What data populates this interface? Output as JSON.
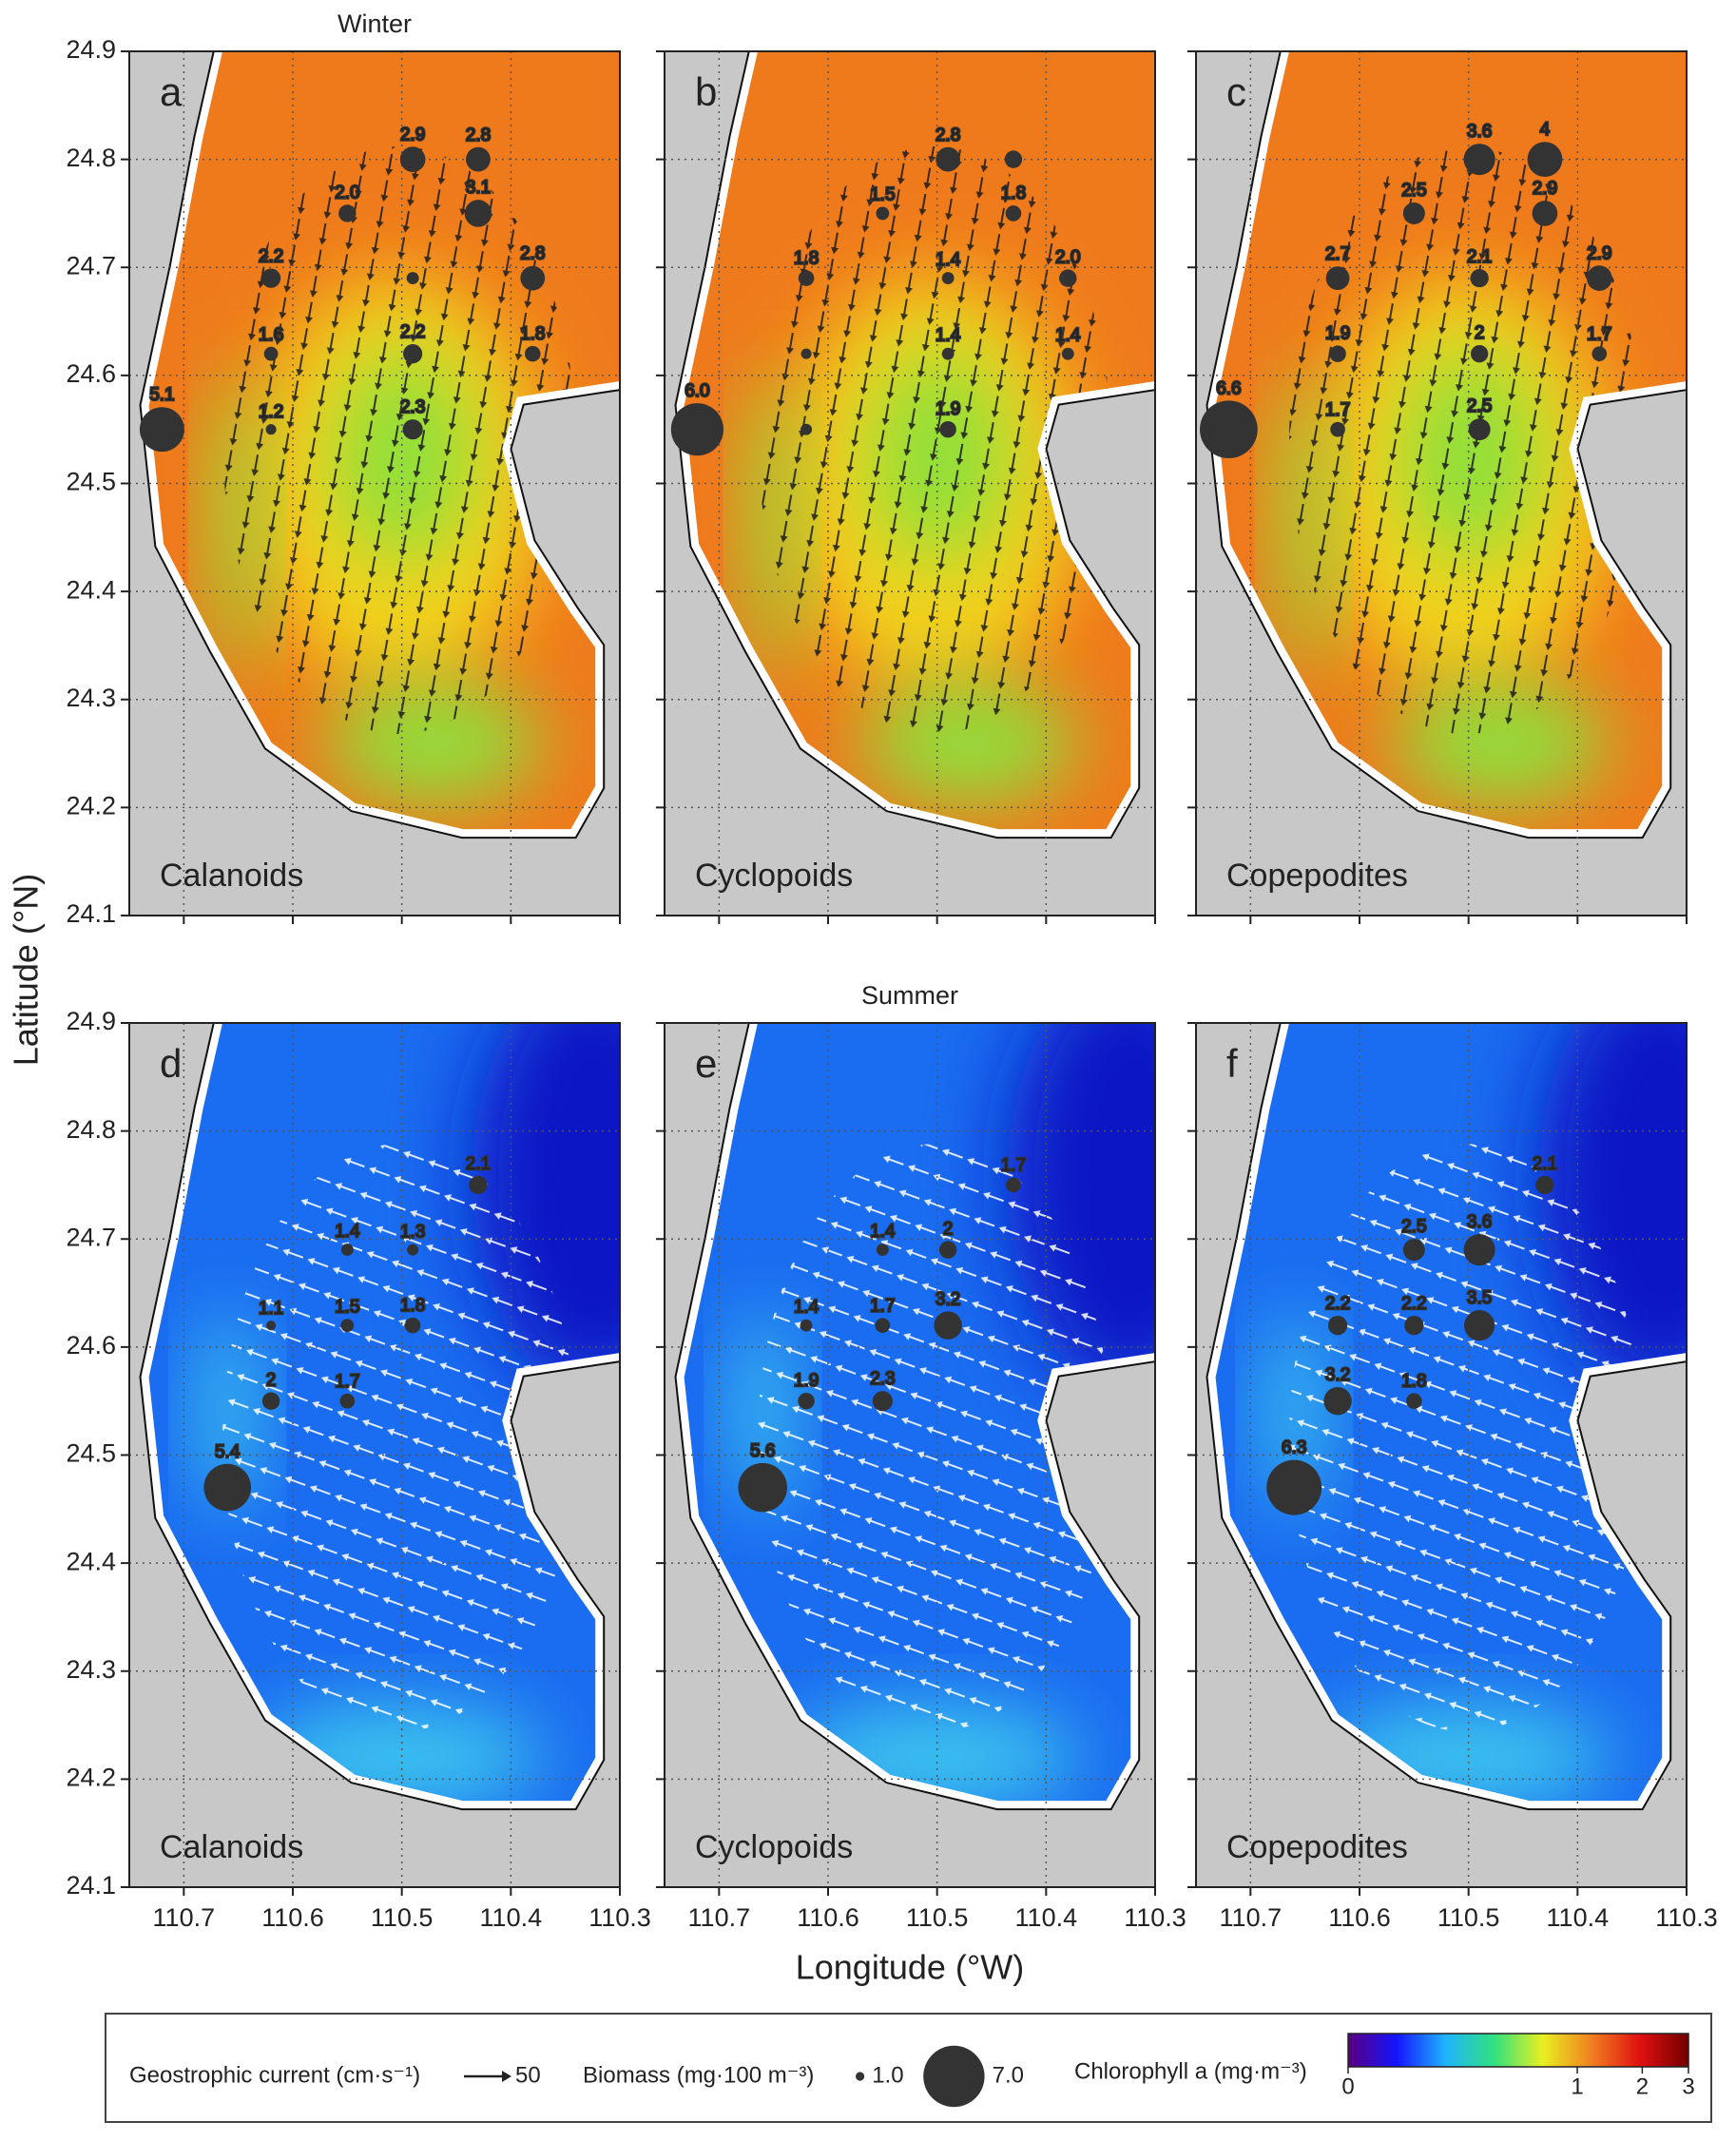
{
  "chart_data": [
    {
      "type": "bubble-map",
      "title": "Winter",
      "panel": "a",
      "group": "Calanoids",
      "ylabel": "Latitude (°N)",
      "xlim": [
        110.75,
        110.3
      ],
      "ylim": [
        24.1,
        24.9
      ],
      "xticks": [
        110.7,
        110.6,
        110.5,
        110.4,
        110.3
      ],
      "yticks": [
        24.1,
        24.2,
        24.3,
        24.4,
        24.5,
        24.6,
        24.7,
        24.8,
        24.9
      ],
      "grid": true,
      "water_colors": [
        "#ef7a1c",
        "#f2d21e",
        "#8fe03a"
      ],
      "vector_color": "#1a1a1a",
      "bubble_color": "#333333",
      "lon": [
        110.49,
        110.43,
        110.55,
        110.43,
        110.62,
        110.49,
        110.38,
        110.62,
        110.49,
        110.38,
        110.72,
        110.62,
        110.49
      ],
      "lat": [
        24.8,
        24.8,
        24.75,
        24.75,
        24.69,
        24.69,
        24.69,
        24.62,
        24.62,
        24.62,
        24.55,
        24.55,
        24.55
      ],
      "values": [
        2.9,
        2.8,
        2.0,
        3.1,
        2.2,
        1.4,
        2.8,
        1.6,
        2.2,
        1.8,
        5.1,
        1.2,
        2.3
      ],
      "value_labels": [
        "2.9",
        "2.8",
        "2.0",
        "3.1",
        "2.2",
        null,
        "2.8",
        "1.6",
        "2.2",
        "1.8",
        "5.1",
        "1.2",
        "2.3"
      ]
    },
    {
      "type": "bubble-map",
      "panel": "b",
      "group": "Cyclopoids",
      "xlim": [
        110.75,
        110.3
      ],
      "ylim": [
        24.1,
        24.9
      ],
      "xticks": [
        110.7,
        110.6,
        110.5,
        110.4,
        110.3
      ],
      "yticks": [
        24.1,
        24.2,
        24.3,
        24.4,
        24.5,
        24.6,
        24.7,
        24.8,
        24.9
      ],
      "grid": true,
      "water_colors": [
        "#ef7a1c",
        "#f2d21e",
        "#8fe03a"
      ],
      "vector_color": "#1a1a1a",
      "bubble_color": "#333333",
      "lon": [
        110.49,
        110.43,
        110.55,
        110.43,
        110.62,
        110.49,
        110.38,
        110.62,
        110.49,
        110.38,
        110.72,
        110.62,
        110.49
      ],
      "lat": [
        24.8,
        24.8,
        24.75,
        24.75,
        24.69,
        24.69,
        24.69,
        24.62,
        24.62,
        24.62,
        24.55,
        24.55,
        24.55
      ],
      "values": [
        2.8,
        2.0,
        1.5,
        1.8,
        1.8,
        1.4,
        2.0,
        1.2,
        1.4,
        1.4,
        6.0,
        1.3,
        1.9
      ],
      "value_labels": [
        "2.8",
        null,
        "1.5",
        "1.8",
        "1.8",
        "1.4",
        "2.0",
        null,
        "1.4",
        "1.4",
        "6.0",
        null,
        "1.9"
      ]
    },
    {
      "type": "bubble-map",
      "panel": "c",
      "group": "Copepodites",
      "xlim": [
        110.75,
        110.3
      ],
      "ylim": [
        24.1,
        24.9
      ],
      "xticks": [
        110.7,
        110.6,
        110.5,
        110.4,
        110.3
      ],
      "yticks": [
        24.1,
        24.2,
        24.3,
        24.4,
        24.5,
        24.6,
        24.7,
        24.8,
        24.9
      ],
      "grid": true,
      "water_colors": [
        "#ef7a1c",
        "#f2d21e",
        "#8fe03a"
      ],
      "vector_color": "#1a1a1a",
      "bubble_color": "#333333",
      "lon": [
        110.49,
        110.43,
        110.55,
        110.43,
        110.62,
        110.49,
        110.38,
        110.62,
        110.49,
        110.38,
        110.72,
        110.62,
        110.49
      ],
      "lat": [
        24.8,
        24.8,
        24.75,
        24.75,
        24.69,
        24.69,
        24.69,
        24.62,
        24.62,
        24.62,
        24.55,
        24.55,
        24.55
      ],
      "values": [
        3.6,
        4.0,
        2.5,
        2.9,
        2.7,
        2.1,
        2.9,
        1.9,
        2.0,
        1.7,
        6.6,
        1.7,
        2.5
      ]
    },
    {
      "type": "bubble-map",
      "panel": "d",
      "group": "Calanoids",
      "xlim": [
        110.75,
        110.3
      ],
      "ylim": [
        24.1,
        24.9
      ],
      "xticks": [
        110.7,
        110.6,
        110.5,
        110.4,
        110.3
      ],
      "yticks": [
        24.1,
        24.2,
        24.3,
        24.4,
        24.5,
        24.6,
        24.7,
        24.8,
        24.9
      ],
      "grid": true,
      "water_colors": [
        "#1a6cf0",
        "#3cc8ee",
        "#0a12c4"
      ],
      "vector_color": "#ffffff",
      "bubble_color": "#333333",
      "lon": [
        110.43,
        110.55,
        110.49,
        110.62,
        110.55,
        110.49,
        110.62,
        110.55,
        110.66
      ],
      "lat": [
        24.75,
        24.69,
        24.69,
        24.62,
        24.62,
        24.62,
        24.55,
        24.55,
        24.47
      ],
      "values": [
        2.1,
        1.4,
        1.3,
        1.1,
        1.5,
        1.8,
        2.0,
        1.7,
        5.4
      ]
    },
    {
      "type": "bubble-map",
      "title": "Summer",
      "panel": "e",
      "group": "Cyclopoids",
      "xlabel": "Longitude (°W)",
      "xlim": [
        110.75,
        110.3
      ],
      "ylim": [
        24.1,
        24.9
      ],
      "xticks": [
        110.7,
        110.6,
        110.5,
        110.4,
        110.3
      ],
      "yticks": [
        24.1,
        24.2,
        24.3,
        24.4,
        24.5,
        24.6,
        24.7,
        24.8,
        24.9
      ],
      "grid": true,
      "water_colors": [
        "#1a6cf0",
        "#3cc8ee",
        "#0a12c4"
      ],
      "vector_color": "#ffffff",
      "bubble_color": "#333333",
      "lon": [
        110.43,
        110.55,
        110.49,
        110.62,
        110.55,
        110.49,
        110.62,
        110.55,
        110.66
      ],
      "lat": [
        24.75,
        24.69,
        24.69,
        24.62,
        24.62,
        24.62,
        24.55,
        24.55,
        24.47
      ],
      "values": [
        1.7,
        1.4,
        2.0,
        1.4,
        1.7,
        3.2,
        1.9,
        2.3,
        5.6
      ]
    },
    {
      "type": "bubble-map",
      "panel": "f",
      "group": "Copepodites",
      "xlim": [
        110.75,
        110.3
      ],
      "ylim": [
        24.1,
        24.9
      ],
      "xticks": [
        110.7,
        110.6,
        110.5,
        110.4,
        110.3
      ],
      "yticks": [
        24.1,
        24.2,
        24.3,
        24.4,
        24.5,
        24.6,
        24.7,
        24.8,
        24.9
      ],
      "grid": true,
      "water_colors": [
        "#1a6cf0",
        "#3cc8ee",
        "#0a12c4"
      ],
      "vector_color": "#ffffff",
      "bubble_color": "#333333",
      "lon": [
        110.43,
        110.55,
        110.49,
        110.62,
        110.55,
        110.49,
        110.62,
        110.55,
        110.66
      ],
      "lat": [
        24.75,
        24.69,
        24.69,
        24.62,
        24.62,
        24.62,
        24.55,
        24.55,
        24.47
      ],
      "values": [
        2.1,
        2.5,
        3.6,
        2.2,
        2.2,
        3.5,
        3.2,
        1.8,
        6.3
      ]
    }
  ],
  "legend": {
    "current_label": "Geostrophic current (cm·s⁻¹)",
    "current_ref": 50,
    "biomass_label": "Biomass (mg·100 m⁻³)",
    "biomass_refs": [
      {
        "value": 1,
        "label": "1.0"
      },
      {
        "value": 7,
        "label": "7.0"
      }
    ],
    "chlorophyll_label": "Chlorophyll a (mg·m⁻³)",
    "chlorophyll_ticks": [
      0,
      1,
      2,
      3
    ],
    "chlorophyll_lim": [
      0,
      3
    ],
    "chlorophyll_colors": [
      "#5a0080",
      "#1414ff",
      "#20b4ff",
      "#30e080",
      "#e8f020",
      "#f08020",
      "#e01010",
      "#700000"
    ]
  }
}
